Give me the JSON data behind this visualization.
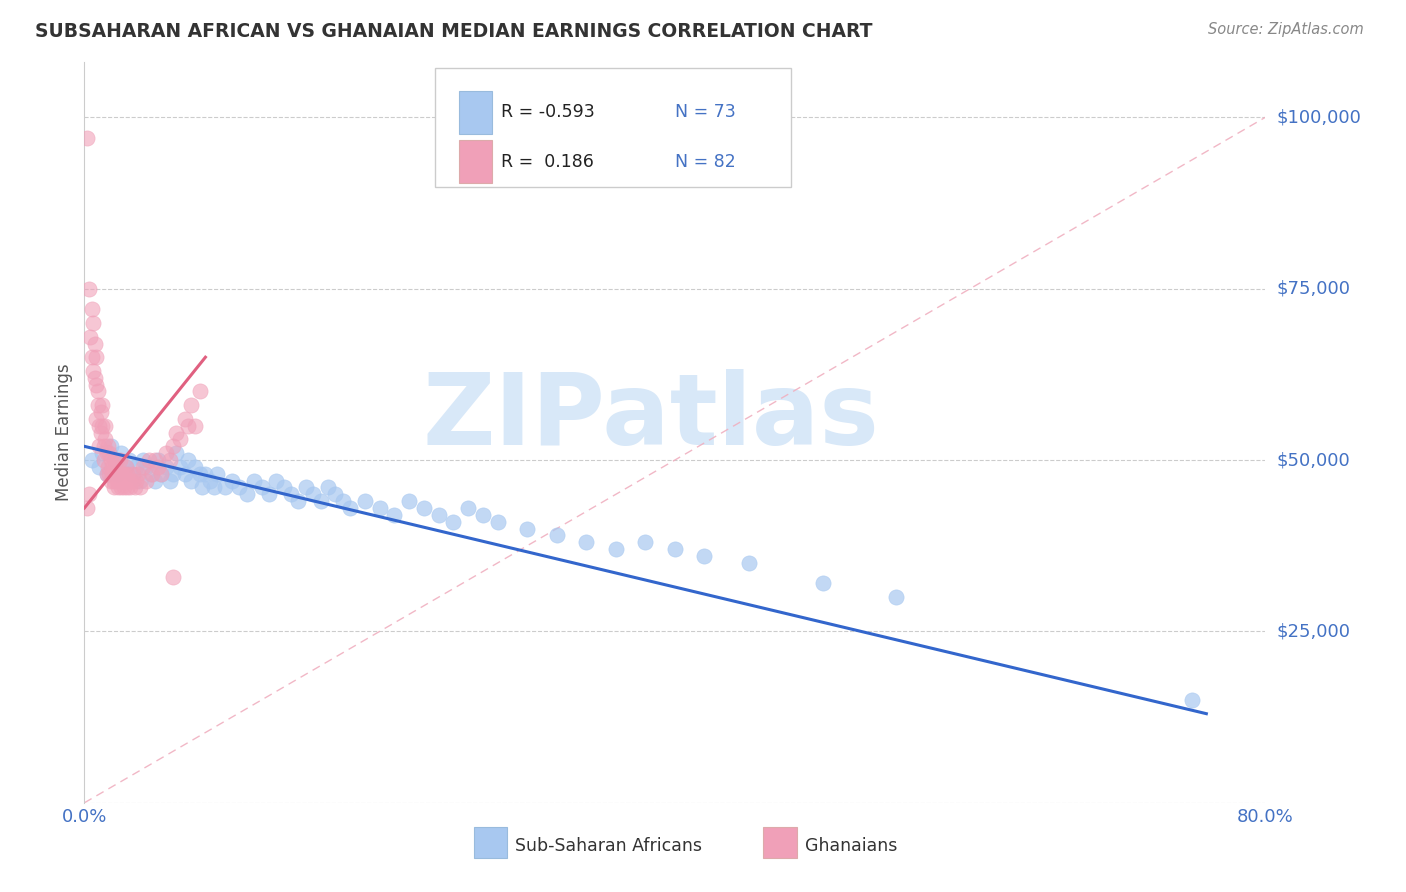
{
  "title": "SUBSAHARAN AFRICAN VS GHANAIAN MEDIAN EARNINGS CORRELATION CHART",
  "source": "Source: ZipAtlas.com",
  "ylabel": "Median Earnings",
  "color_blue": "#A8C8F0",
  "color_pink": "#F0A0B8",
  "color_blue_line": "#3366CC",
  "color_pink_line": "#E06080",
  "color_ref_line": "#E0A0B0",
  "color_axis_labels": "#4472C4",
  "watermark_color": "#D8E8F8",
  "background_color": "#FFFFFF",
  "blue_scatter_x": [
    0.005,
    0.01,
    0.012,
    0.015,
    0.018,
    0.02,
    0.022,
    0.025,
    0.028,
    0.03,
    0.032,
    0.035,
    0.038,
    0.04,
    0.042,
    0.045,
    0.048,
    0.05,
    0.052,
    0.055,
    0.058,
    0.06,
    0.062,
    0.065,
    0.068,
    0.07,
    0.072,
    0.075,
    0.078,
    0.08,
    0.082,
    0.085,
    0.088,
    0.09,
    0.095,
    0.1,
    0.105,
    0.11,
    0.115,
    0.12,
    0.125,
    0.13,
    0.135,
    0.14,
    0.145,
    0.15,
    0.155,
    0.16,
    0.165,
    0.17,
    0.175,
    0.18,
    0.19,
    0.2,
    0.21,
    0.22,
    0.23,
    0.24,
    0.25,
    0.26,
    0.27,
    0.28,
    0.3,
    0.32,
    0.34,
    0.36,
    0.38,
    0.4,
    0.42,
    0.45,
    0.5,
    0.55,
    0.75
  ],
  "blue_scatter_y": [
    50000,
    49000,
    51000,
    48000,
    52000,
    50000,
    48000,
    51000,
    49000,
    50000,
    48000,
    49000,
    47000,
    50000,
    49000,
    48000,
    47000,
    50000,
    48000,
    49000,
    47000,
    48000,
    51000,
    49000,
    48000,
    50000,
    47000,
    49000,
    48000,
    46000,
    48000,
    47000,
    46000,
    48000,
    46000,
    47000,
    46000,
    45000,
    47000,
    46000,
    45000,
    47000,
    46000,
    45000,
    44000,
    46000,
    45000,
    44000,
    46000,
    45000,
    44000,
    43000,
    44000,
    43000,
    42000,
    44000,
    43000,
    42000,
    41000,
    43000,
    42000,
    41000,
    40000,
    39000,
    38000,
    37000,
    38000,
    37000,
    36000,
    35000,
    32000,
    30000,
    15000
  ],
  "pink_scatter_x": [
    0.002,
    0.003,
    0.004,
    0.005,
    0.005,
    0.006,
    0.006,
    0.007,
    0.007,
    0.008,
    0.008,
    0.009,
    0.009,
    0.01,
    0.01,
    0.011,
    0.011,
    0.012,
    0.012,
    0.013,
    0.013,
    0.014,
    0.014,
    0.015,
    0.015,
    0.016,
    0.016,
    0.017,
    0.017,
    0.018,
    0.018,
    0.019,
    0.019,
    0.02,
    0.02,
    0.021,
    0.021,
    0.022,
    0.022,
    0.023,
    0.023,
    0.024,
    0.024,
    0.025,
    0.025,
    0.026,
    0.026,
    0.027,
    0.027,
    0.028,
    0.028,
    0.029,
    0.029,
    0.03,
    0.031,
    0.032,
    0.033,
    0.034,
    0.035,
    0.036,
    0.038,
    0.04,
    0.042,
    0.044,
    0.046,
    0.048,
    0.05,
    0.052,
    0.055,
    0.058,
    0.06,
    0.062,
    0.065,
    0.068,
    0.07,
    0.072,
    0.075,
    0.078,
    0.002,
    0.003,
    0.06,
    0.008
  ],
  "pink_scatter_y": [
    97000,
    75000,
    68000,
    72000,
    65000,
    63000,
    70000,
    62000,
    67000,
    56000,
    61000,
    58000,
    60000,
    55000,
    52000,
    54000,
    57000,
    55000,
    58000,
    52000,
    50000,
    55000,
    53000,
    51000,
    48000,
    52000,
    49000,
    51000,
    48000,
    50000,
    47000,
    49000,
    48000,
    47000,
    46000,
    48000,
    49000,
    50000,
    47000,
    48000,
    46000,
    48000,
    50000,
    48000,
    46000,
    48000,
    47000,
    46000,
    48000,
    47000,
    49000,
    46000,
    48000,
    47000,
    46000,
    47000,
    48000,
    46000,
    47000,
    48000,
    46000,
    49000,
    47000,
    50000,
    48000,
    50000,
    49000,
    48000,
    51000,
    50000,
    52000,
    54000,
    53000,
    56000,
    55000,
    58000,
    55000,
    60000,
    43000,
    45000,
    33000,
    65000
  ]
}
